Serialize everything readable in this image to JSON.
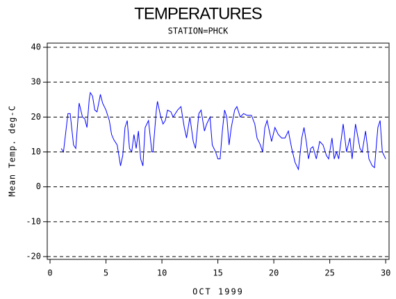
{
  "chart_data": {
    "type": "line",
    "title": "TEMPERATURES",
    "subtitle": "STATION=PHCK",
    "x_label": "OCT 1999",
    "y_label": "Mean Temp. deg-C",
    "xlim": [
      -0.25,
      30.3
    ],
    "ylim": [
      -20.8,
      41.2
    ],
    "xticks": [
      0,
      5,
      10,
      15,
      20,
      25,
      30
    ],
    "yticks": [
      -20,
      -10,
      0,
      10,
      20,
      30,
      40
    ],
    "grid": true,
    "series": [
      {
        "color": "#0000ff",
        "x": [
          1.0,
          1.2,
          1.6,
          1.8,
          2.1,
          2.3,
          2.6,
          2.9,
          3.1,
          3.3,
          3.5,
          3.6,
          3.8,
          4.0,
          4.2,
          4.5,
          4.7,
          5.0,
          5.3,
          5.5,
          5.7,
          6.0,
          6.3,
          6.5,
          6.7,
          6.9,
          7.1,
          7.3,
          7.5,
          7.7,
          7.9,
          8.1,
          8.3,
          8.5,
          8.8,
          9.1,
          9.2,
          9.5,
          9.6,
          9.9,
          10.1,
          10.3,
          10.5,
          10.8,
          11.0,
          11.4,
          11.7,
          12.0,
          12.2,
          12.5,
          12.8,
          13.0,
          13.3,
          13.5,
          13.8,
          14.0,
          14.3,
          14.5,
          14.8,
          15.0,
          15.2,
          15.4,
          15.6,
          15.8,
          16.0,
          16.2,
          16.5,
          16.7,
          17.0,
          17.3,
          17.6,
          18.0,
          18.3,
          18.5,
          18.8,
          19.0,
          19.2,
          19.4,
          19.6,
          19.8,
          20.1,
          20.4,
          20.7,
          21.0,
          21.3,
          21.6,
          21.9,
          22.2,
          22.5,
          22.7,
          22.9,
          23.1,
          23.3,
          23.5,
          23.8,
          24.1,
          24.4,
          24.7,
          24.9,
          25.2,
          25.4,
          25.6,
          25.8,
          26.2,
          26.5,
          26.8,
          27.0,
          27.3,
          27.7,
          27.9,
          28.2,
          28.5,
          28.8,
          29.0,
          29.3,
          29.5,
          29.7,
          30.0
        ],
        "values": [
          11,
          10,
          21,
          21,
          12,
          11,
          24,
          20,
          19.5,
          17,
          25,
          27,
          26,
          22,
          21.5,
          26.5,
          24,
          22,
          19,
          15,
          13.5,
          12,
          6,
          9,
          17,
          19,
          11,
          10,
          15,
          11,
          16,
          8,
          6,
          17,
          19,
          10,
          10,
          22,
          24.5,
          20,
          18,
          19,
          22,
          21.5,
          20,
          22,
          23,
          17,
          14,
          20,
          13,
          11,
          21,
          22,
          16,
          18,
          20,
          12,
          10,
          8,
          8,
          16,
          22,
          20,
          12,
          17,
          22,
          23,
          20,
          21,
          20.5,
          20.5,
          18,
          14,
          12,
          10,
          17,
          19,
          16,
          13,
          17,
          15,
          14,
          14,
          16,
          11,
          7,
          5,
          14,
          17,
          13,
          8,
          11,
          11.5,
          8,
          13,
          12,
          9,
          8,
          14,
          8,
          10,
          8,
          18,
          10,
          14,
          8,
          18,
          11,
          10,
          16,
          8,
          6,
          5.5,
          17,
          19,
          10,
          8
        ]
      }
    ]
  }
}
